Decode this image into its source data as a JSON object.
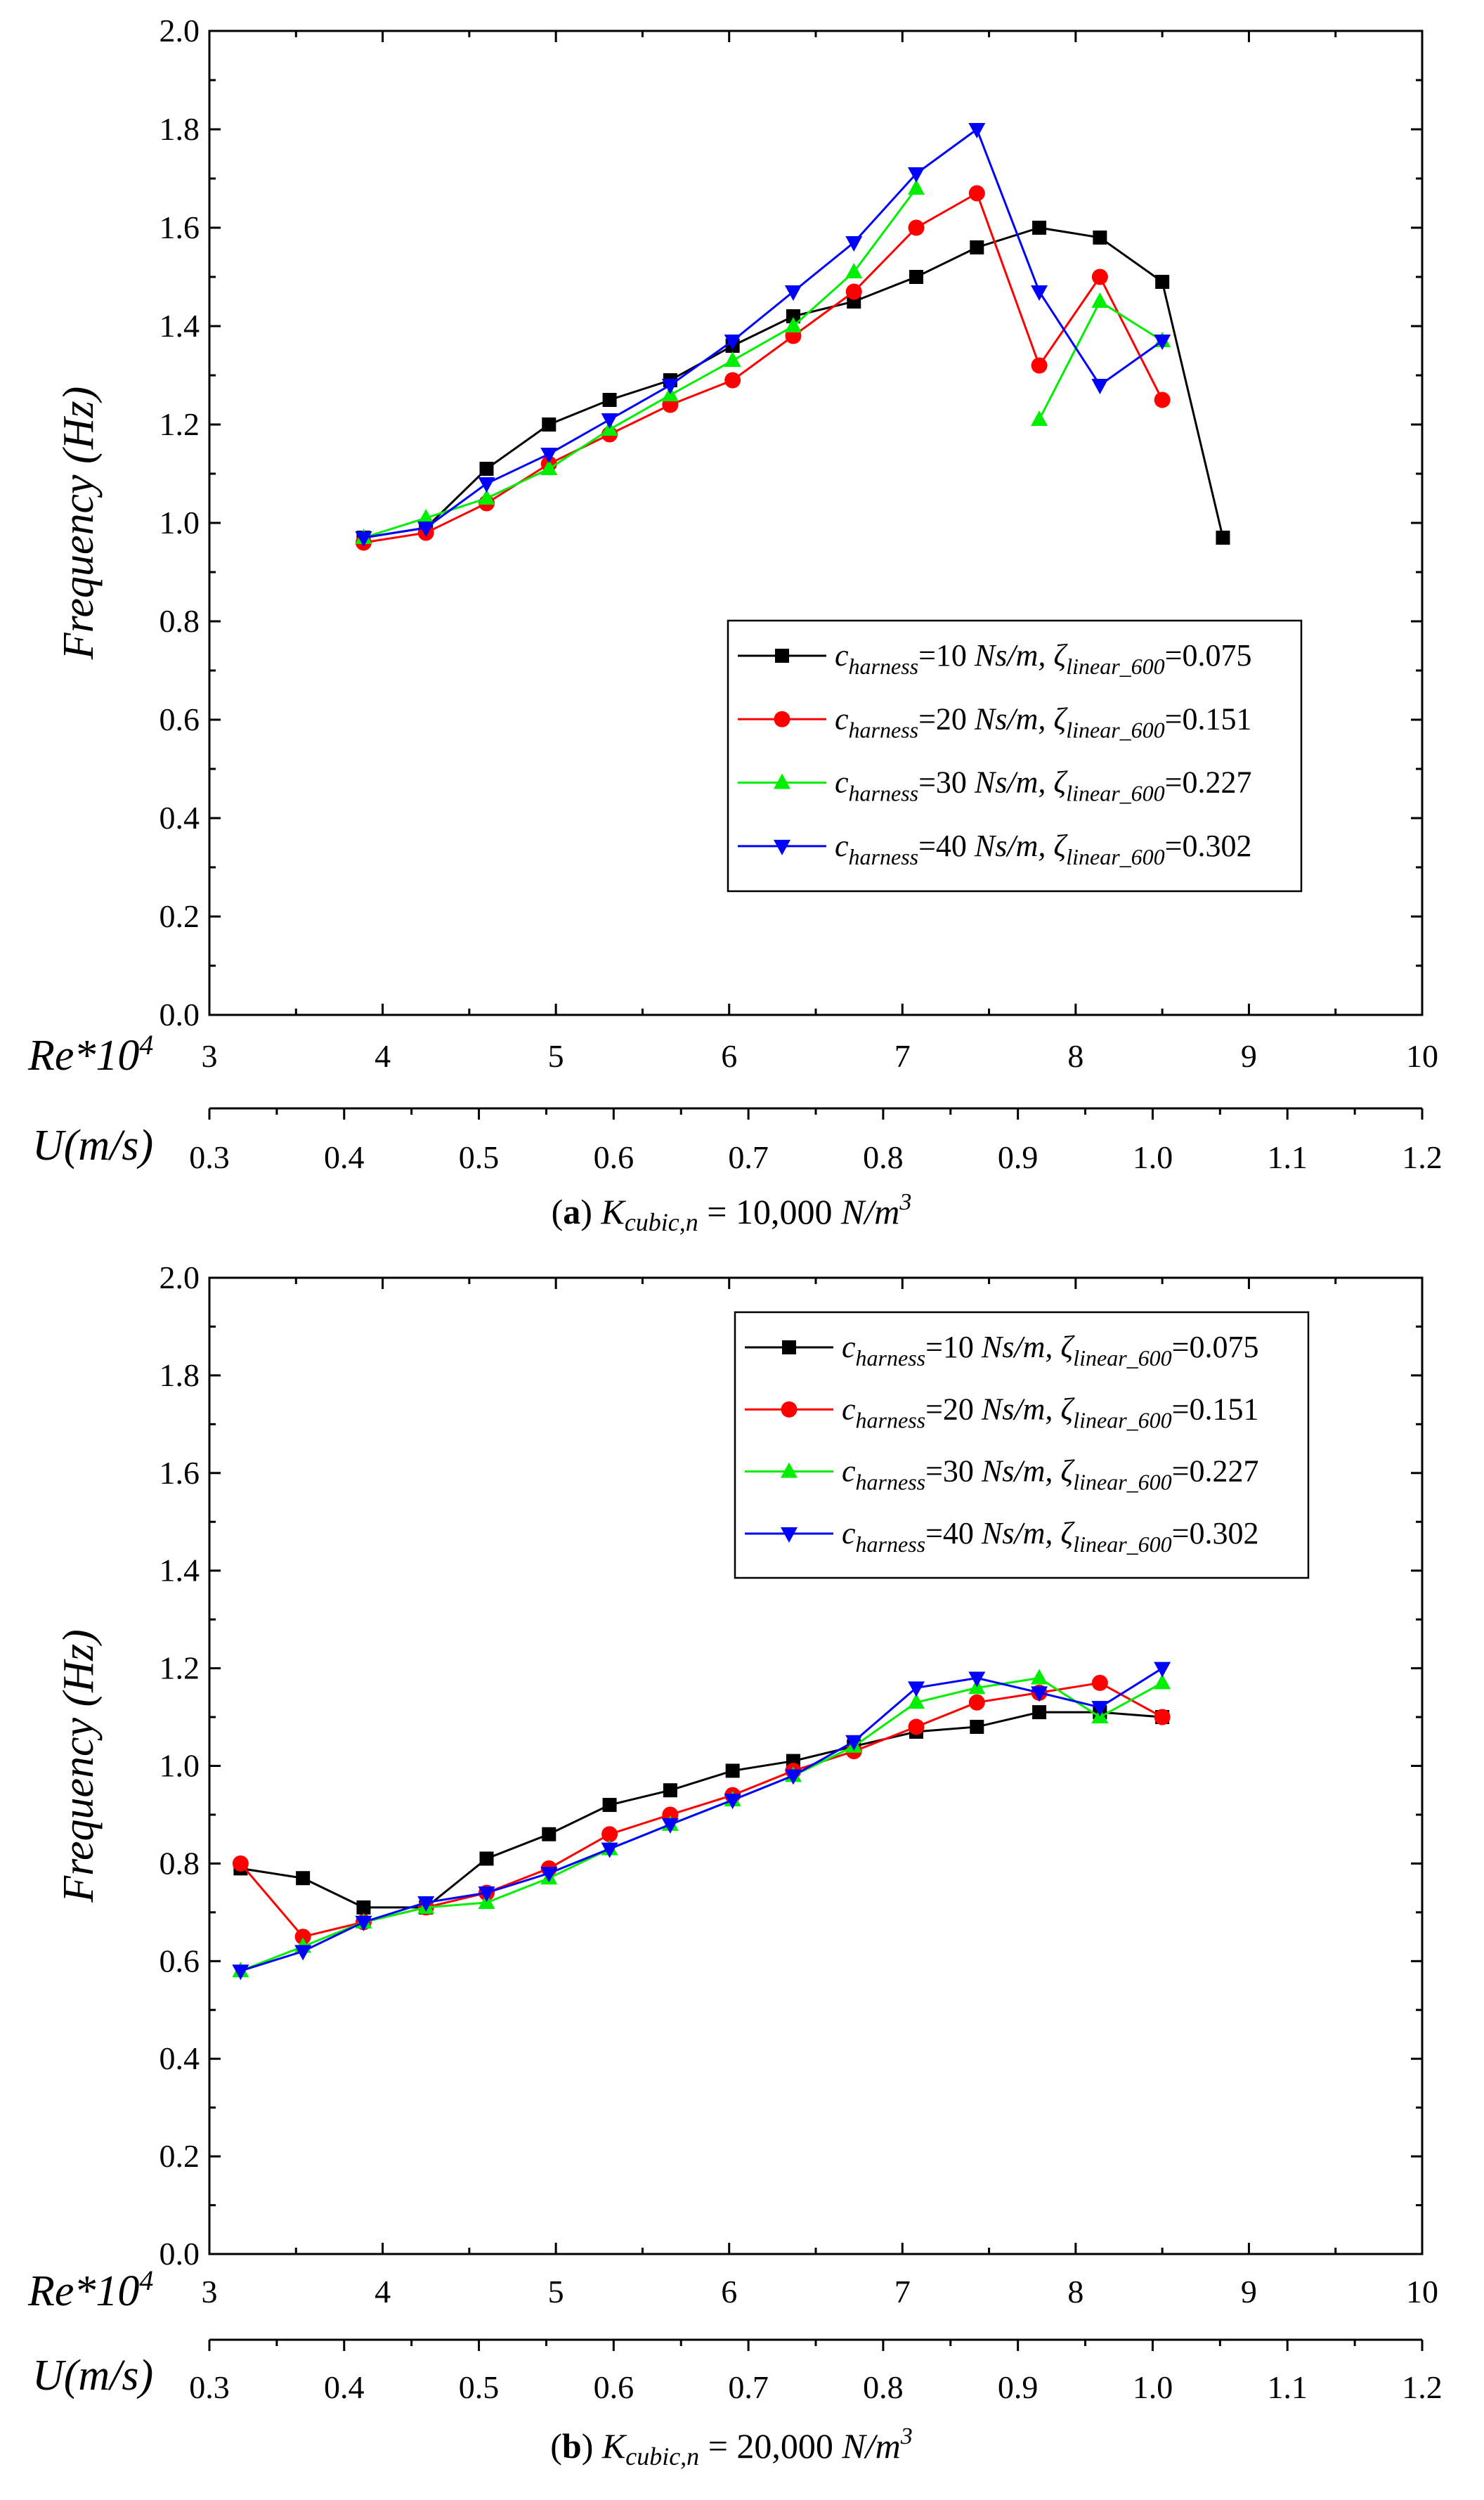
{
  "figure": {
    "panels": [
      {
        "caption": {
          "label": "a",
          "k": "K",
          "ksub": "cubic,n",
          "rest": " = 10,000 ",
          "unit": "N/m",
          "exp": "3"
        },
        "ylabel": "Frequency (Hz)",
        "re_label": "Re*10",
        "re_exp": "4",
        "u_label": "U(m/s)"
      },
      {
        "caption": {
          "label": "b",
          "k": "K",
          "ksub": "cubic,n",
          "rest": " = 20,000 ",
          "unit": "N/m",
          "exp": "3"
        },
        "ylabel": "Frequency (Hz)",
        "re_label": "Re*10",
        "re_exp": "4",
        "u_label": "U(m/s)"
      }
    ],
    "legend_parts": {
      "c": "c",
      "csub": "harness",
      "zeta": "ζ",
      "zsub": "linear_600",
      "unit": " Ns/m, "
    }
  },
  "chart_data": [
    {
      "type": "line",
      "title": "(a) Kcubic,n = 10,000 N/m3",
      "xlabel": "Re*10^4",
      "x2label": "U(m/s)",
      "ylabel": "Frequency (Hz)",
      "xlim": [
        3,
        10
      ],
      "ylim": [
        0,
        2.0
      ],
      "yticks": [
        0.0,
        0.2,
        0.4,
        0.6,
        0.8,
        1.0,
        1.2,
        1.4,
        1.6,
        1.8,
        2.0
      ],
      "xticks": [
        3,
        4,
        5,
        6,
        7,
        8,
        9,
        10
      ],
      "uticks": [
        0.3,
        0.4,
        0.5,
        0.6,
        0.7,
        0.8,
        0.9,
        1.0,
        1.1,
        1.2
      ],
      "legend_position": "right-middle",
      "series": [
        {
          "name": "c_harness=10 Ns/m, ζ_linear_600=0.075",
          "c_value": "=10",
          "z_value": "=0.075",
          "color": "#000000",
          "marker": "square",
          "x": [
            3.89,
            4.25,
            4.6,
            4.96,
            5.31,
            5.66,
            6.02,
            6.37,
            6.72,
            7.08,
            7.43,
            7.79,
            8.14,
            8.5,
            8.85
          ],
          "y": [
            0.97,
            0.99,
            1.11,
            1.2,
            1.25,
            1.29,
            1.36,
            1.42,
            1.45,
            1.5,
            1.56,
            1.6,
            1.58,
            1.49,
            0.97
          ]
        },
        {
          "name": "c_harness=20 Ns/m, ζ_linear_600=0.151",
          "c_value": "=20",
          "z_value": "=0.151",
          "color": "#ff0000",
          "marker": "circle",
          "x": [
            3.89,
            4.25,
            4.6,
            4.96,
            5.31,
            5.66,
            6.02,
            6.37,
            6.72,
            7.08,
            7.43,
            7.79,
            8.14,
            8.5
          ],
          "y": [
            0.96,
            0.98,
            1.04,
            1.12,
            1.18,
            1.24,
            1.29,
            1.38,
            1.47,
            1.6,
            1.67,
            1.32,
            1.5,
            1.25
          ]
        },
        {
          "name": "c_harness=30 Ns/m, ζ_linear_600=0.227",
          "c_value": "=30",
          "z_value": "=0.227",
          "color": "#00ee00",
          "marker": "triangle-up",
          "x": [
            3.89,
            4.25,
            4.6,
            4.96,
            5.31,
            5.66,
            6.02,
            6.37,
            6.72,
            7.08,
            null,
            7.79,
            8.14,
            8.5
          ],
          "y": [
            0.97,
            1.01,
            1.05,
            1.11,
            1.19,
            1.26,
            1.33,
            1.4,
            1.51,
            1.68,
            null,
            1.21,
            1.45,
            1.37
          ]
        },
        {
          "name": "c_harness=40 Ns/m, ζ_linear_600=0.302",
          "c_value": "=40",
          "z_value": "=0.302",
          "color": "#0000ff",
          "marker": "triangle-down",
          "x": [
            3.89,
            4.25,
            4.6,
            4.96,
            5.31,
            5.66,
            6.02,
            6.37,
            6.72,
            7.08,
            7.43,
            7.79,
            8.14,
            8.5
          ],
          "y": [
            0.97,
            0.99,
            1.08,
            1.14,
            1.21,
            1.28,
            1.37,
            1.47,
            1.57,
            1.71,
            1.8,
            1.47,
            1.28,
            1.37
          ]
        }
      ]
    },
    {
      "type": "line",
      "title": "(b) Kcubic,n = 20,000 N/m3",
      "xlabel": "Re*10^4",
      "x2label": "U(m/s)",
      "ylabel": "Frequency (Hz)",
      "xlim": [
        3,
        10
      ],
      "ylim": [
        0,
        2.0
      ],
      "yticks": [
        0.0,
        0.2,
        0.4,
        0.6,
        0.8,
        1.0,
        1.2,
        1.4,
        1.6,
        1.8,
        2.0
      ],
      "xticks": [
        3,
        4,
        5,
        6,
        7,
        8,
        9,
        10
      ],
      "uticks": [
        0.3,
        0.4,
        0.5,
        0.6,
        0.7,
        0.8,
        0.9,
        1.0,
        1.1,
        1.2
      ],
      "legend_position": "top-right",
      "series": [
        {
          "name": "c_harness=10 Ns/m, ζ_linear_600=0.075",
          "c_value": "=10",
          "z_value": "=0.075",
          "color": "#000000",
          "marker": "square",
          "x": [
            3.18,
            3.54,
            3.89,
            4.25,
            4.6,
            4.96,
            5.31,
            5.66,
            6.02,
            6.37,
            6.72,
            7.08,
            7.43,
            7.79,
            8.14,
            8.5
          ],
          "y": [
            0.79,
            0.77,
            0.71,
            0.71,
            0.81,
            0.86,
            0.92,
            0.95,
            0.99,
            1.01,
            1.04,
            1.07,
            1.08,
            1.11,
            1.11,
            1.1
          ]
        },
        {
          "name": "c_harness=20 Ns/m, ζ_linear_600=0.151",
          "c_value": "=20",
          "z_value": "=0.151",
          "color": "#ff0000",
          "marker": "circle",
          "x": [
            3.18,
            3.54,
            3.89,
            4.25,
            4.6,
            4.96,
            5.31,
            5.66,
            6.02,
            6.37,
            6.72,
            7.08,
            7.43,
            7.79,
            8.14,
            8.5
          ],
          "y": [
            0.8,
            0.65,
            0.68,
            0.71,
            0.74,
            0.79,
            0.86,
            0.9,
            0.94,
            0.99,
            1.03,
            1.08,
            1.13,
            1.15,
            1.17,
            1.1
          ]
        },
        {
          "name": "c_harness=30 Ns/m, ζ_linear_600=0.227",
          "c_value": "=30",
          "z_value": "=0.227",
          "color": "#00ee00",
          "marker": "triangle-up",
          "x": [
            3.18,
            3.54,
            3.89,
            4.25,
            4.6,
            4.96,
            5.31,
            5.66,
            6.02,
            6.37,
            6.72,
            7.08,
            7.43,
            7.79,
            8.14,
            8.5
          ],
          "y": [
            0.58,
            0.63,
            0.68,
            0.71,
            0.72,
            0.77,
            0.83,
            0.88,
            0.93,
            0.98,
            1.04,
            1.13,
            1.16,
            1.18,
            1.1,
            1.17
          ]
        },
        {
          "name": "c_harness=40 Ns/m, ζ_linear_600=0.302",
          "c_value": "=40",
          "z_value": "=0.302",
          "color": "#0000ff",
          "marker": "triangle-down",
          "x": [
            3.18,
            3.54,
            3.89,
            4.25,
            4.6,
            4.96,
            5.31,
            5.66,
            6.02,
            6.37,
            6.72,
            7.08,
            7.43,
            7.79,
            8.14,
            8.5
          ],
          "y": [
            0.58,
            0.62,
            0.68,
            0.72,
            0.74,
            0.78,
            0.83,
            0.88,
            0.93,
            0.98,
            1.05,
            1.16,
            1.18,
            1.15,
            1.12,
            1.2
          ]
        }
      ]
    }
  ]
}
